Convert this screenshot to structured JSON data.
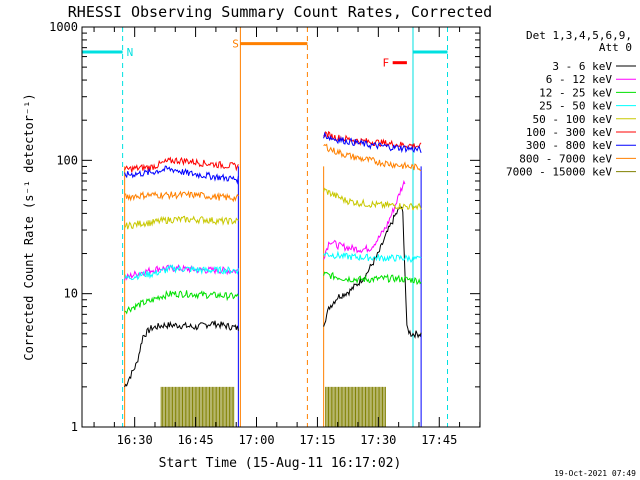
{
  "chart_data": {
    "type": "line",
    "title": "RHESSI Observing Summary Count Rates, Corrected",
    "xlabel": "Start Time (15-Aug-11 16:17:02)",
    "ylabel": "Corrected Count Rate (s⁻¹ detector⁻¹)",
    "y_scale": "log",
    "ylim": [
      1,
      1000
    ],
    "xlim_minutes_after_start": [
      0,
      98
    ],
    "y_ticks": [
      {
        "value": 1,
        "label": "1"
      },
      {
        "value": 10,
        "label": "10"
      },
      {
        "value": 100,
        "label": "100"
      },
      {
        "value": 1000,
        "label": "1000"
      }
    ],
    "x_ticks": [
      {
        "value": 12.97,
        "label": "16:30"
      },
      {
        "value": 27.97,
        "label": "16:45"
      },
      {
        "value": 42.97,
        "label": "17:00"
      },
      {
        "value": 57.97,
        "label": "17:15"
      },
      {
        "value": 72.97,
        "label": "17:30"
      },
      {
        "value": 87.97,
        "label": "17:45"
      }
    ],
    "legend": {
      "position": "right",
      "header": [
        "Det 1,3,4,5,6,9,",
        "Att 0"
      ],
      "entries": [
        {
          "label": "3 - 6 keV",
          "color": "#000000"
        },
        {
          "label": "6 - 12 keV",
          "color": "#ff00ff"
        },
        {
          "label": "12 - 25 keV",
          "color": "#00e000"
        },
        {
          "label": "25 - 50 keV",
          "color": "#00ffff"
        },
        {
          "label": "50 - 100 keV",
          "color": "#c8c800"
        },
        {
          "label": "100 - 300 keV",
          "color": "#ff0000"
        },
        {
          "label": "300 - 800 keV",
          "color": "#0000ff"
        },
        {
          "label": "800 - 7000 keV",
          "color": "#ff8000"
        },
        {
          "label": "7000 - 15000 keV",
          "color": "#808000"
        }
      ]
    },
    "segments": [
      {
        "start": 10.5,
        "end": 38.5
      },
      {
        "start": 59.5,
        "end": 83.5
      }
    ],
    "series": [
      {
        "name": "3 - 6 keV",
        "color": "#000000",
        "segments": [
          {
            "x": [
              10.5,
              13.5,
              15,
              17,
              20,
              24,
              28,
              32,
              36,
              38.5
            ],
            "y": [
              2,
              3,
              4.8,
              5.5,
              5.8,
              5.8,
              5.6,
              6,
              5.7,
              5.5
            ]
          },
          {
            "x": [
              59.5,
              61,
              63,
              66,
              68,
              70,
              73,
              75,
              77,
              78.5,
              79,
              80,
              81,
              83.5
            ],
            "y": [
              6,
              8,
              9.5,
              10.5,
              12,
              14,
              20,
              28,
              38,
              45,
              40,
              5.5,
              5,
              5
            ]
          }
        ]
      },
      {
        "name": "6 - 12 keV",
        "color": "#ff00ff",
        "segments": [
          {
            "x": [
              10.5,
              13,
              15,
              17,
              19,
              22,
              26,
              30,
              34,
              38.5
            ],
            "y": [
              13,
              14,
              14.5,
              15,
              15.5,
              15.5,
              15.3,
              15,
              15,
              14.8
            ]
          },
          {
            "x": [
              59.5,
              61,
              63,
              66,
              69,
              71,
              73,
              75,
              77,
              78.5,
              79.5
            ],
            "y": [
              19,
              25,
              23,
              22,
              21.5,
              22,
              26,
              32,
              45,
              60,
              70
            ]
          }
        ]
      },
      {
        "name": "12 - 25 keV",
        "color": "#00e000",
        "segments": [
          {
            "x": [
              10.5,
              13,
              15,
              17,
              19,
              22,
              26,
              30,
              34,
              38.5
            ],
            "y": [
              7.5,
              8,
              8.5,
              8.8,
              9.5,
              10,
              10,
              9.8,
              9.7,
              9.5
            ]
          },
          {
            "x": [
              59.5,
              62,
              65,
              68,
              71,
              74,
              77,
              80,
              83.5
            ],
            "y": [
              14,
              13.5,
              13,
              12.8,
              12.8,
              13,
              13,
              12.8,
              12.5
            ]
          }
        ]
      },
      {
        "name": "25 - 50 keV",
        "color": "#00ffff",
        "segments": [
          {
            "x": [
              10.5,
              13,
              15,
              17,
              19,
              22,
              26,
              30,
              34,
              38.5
            ],
            "y": [
              13,
              13.5,
              14,
              14,
              14.5,
              15.5,
              15.3,
              15,
              15,
              15
            ]
          },
          {
            "x": [
              59.5,
              62,
              65,
              68,
              71,
              74,
              77,
              80,
              83.5
            ],
            "y": [
              20,
              19.5,
              19,
              18.8,
              18.7,
              18.5,
              18.5,
              18.5,
              18
            ]
          }
        ]
      },
      {
        "name": "50 - 100 keV",
        "color": "#c8c800",
        "segments": [
          {
            "x": [
              10.5,
              13,
              15,
              17,
              19,
              22,
              26,
              30,
              34,
              38.5
            ],
            "y": [
              32,
              33,
              34,
              34,
              35,
              36,
              36,
              36,
              35,
              35
            ]
          },
          {
            "x": [
              59.5,
              62,
              65,
              68,
              71,
              74,
              77,
              80,
              83.5
            ],
            "y": [
              60,
              55,
              50,
              48,
              47,
              46,
              46,
              45,
              45
            ]
          }
        ]
      },
      {
        "name": "100 - 300 keV",
        "color": "#ff0000",
        "segments": [
          {
            "x": [
              10.5,
              13,
              15,
              17,
              19,
              21,
              23,
              26,
              29,
              32,
              35,
              38.5
            ],
            "y": [
              85,
              87,
              88,
              89,
              93,
              98,
              100,
              99,
              96,
              94,
              92,
              90
            ]
          },
          {
            "x": [
              59.5,
              62,
              65,
              68,
              71,
              74,
              77,
              80,
              83.5
            ],
            "y": [
              160,
              150,
              145,
              140,
              138,
              135,
              132,
              130,
              128
            ]
          }
        ]
      },
      {
        "name": "300 - 800 keV",
        "color": "#0000ff",
        "segments": [
          {
            "x": [
              10.5,
              13,
              15,
              17,
              19,
              21,
              23,
              26,
              29,
              32,
              35,
              38.5
            ],
            "y": [
              78,
              79,
              80,
              81,
              84,
              86,
              85,
              80,
              78,
              76,
              74,
              72
            ]
          },
          {
            "x": [
              59.5,
              62,
              65,
              68,
              71,
              74,
              77,
              80,
              83.5
            ],
            "y": [
              155,
              145,
              140,
              135,
              130,
              128,
              125,
              123,
              120
            ]
          }
        ]
      },
      {
        "name": "800 - 7000 keV",
        "color": "#ff8000",
        "segments": [
          {
            "x": [
              10.5,
              13,
              16,
              19,
              22,
              25,
              28,
              31,
              34,
              38.5
            ],
            "y": [
              53,
              54,
              55,
              55,
              55,
              55,
              55,
              54,
              53,
              52
            ]
          },
          {
            "x": [
              59.5,
              62,
              65,
              68,
              71,
              74,
              77,
              80,
              83.5
            ],
            "y": [
              130,
              118,
              110,
              104,
              100,
              96,
              93,
              90,
              88
            ]
          }
        ]
      }
    ],
    "bursts": {
      "name": "7000 - 15000 keV",
      "color": "#808000",
      "level": 2,
      "base": 1,
      "ranges": [
        {
          "start": 19.5,
          "end": 37.5
        },
        {
          "start": 60,
          "end": 75
        }
      ]
    },
    "flags": [
      {
        "label": "N",
        "color": "#00e0e0",
        "bar": [
          0,
          10
        ],
        "line_style": "dashed",
        "line_x": 10,
        "label_x": 11
      },
      {
        "label": "N",
        "color": "#00e0e0",
        "bar": [
          81.5,
          90
        ],
        "line_style": "dashed",
        "line_x": 90
      },
      {
        "label": "",
        "color": "#00e0e0",
        "line_style": "solid",
        "line_x": 81.5
      },
      {
        "label": "S",
        "color": "#ff8000",
        "bar": [
          39,
          55.5
        ],
        "line_style": "dashed",
        "line_x": 55.5,
        "label_x": 37
      },
      {
        "label": "",
        "color": "#ff8000",
        "line_style": "solid",
        "line_x": 39
      },
      {
        "label": "F",
        "color": "#ff0000",
        "bar": [
          76.5,
          80
        ],
        "label_x": 74
      }
    ],
    "flag_levels": {
      "N": 650,
      "S": 750,
      "F": 540
    },
    "grid": false,
    "footer_timestamp": "19-Oct-2021 07:49"
  }
}
